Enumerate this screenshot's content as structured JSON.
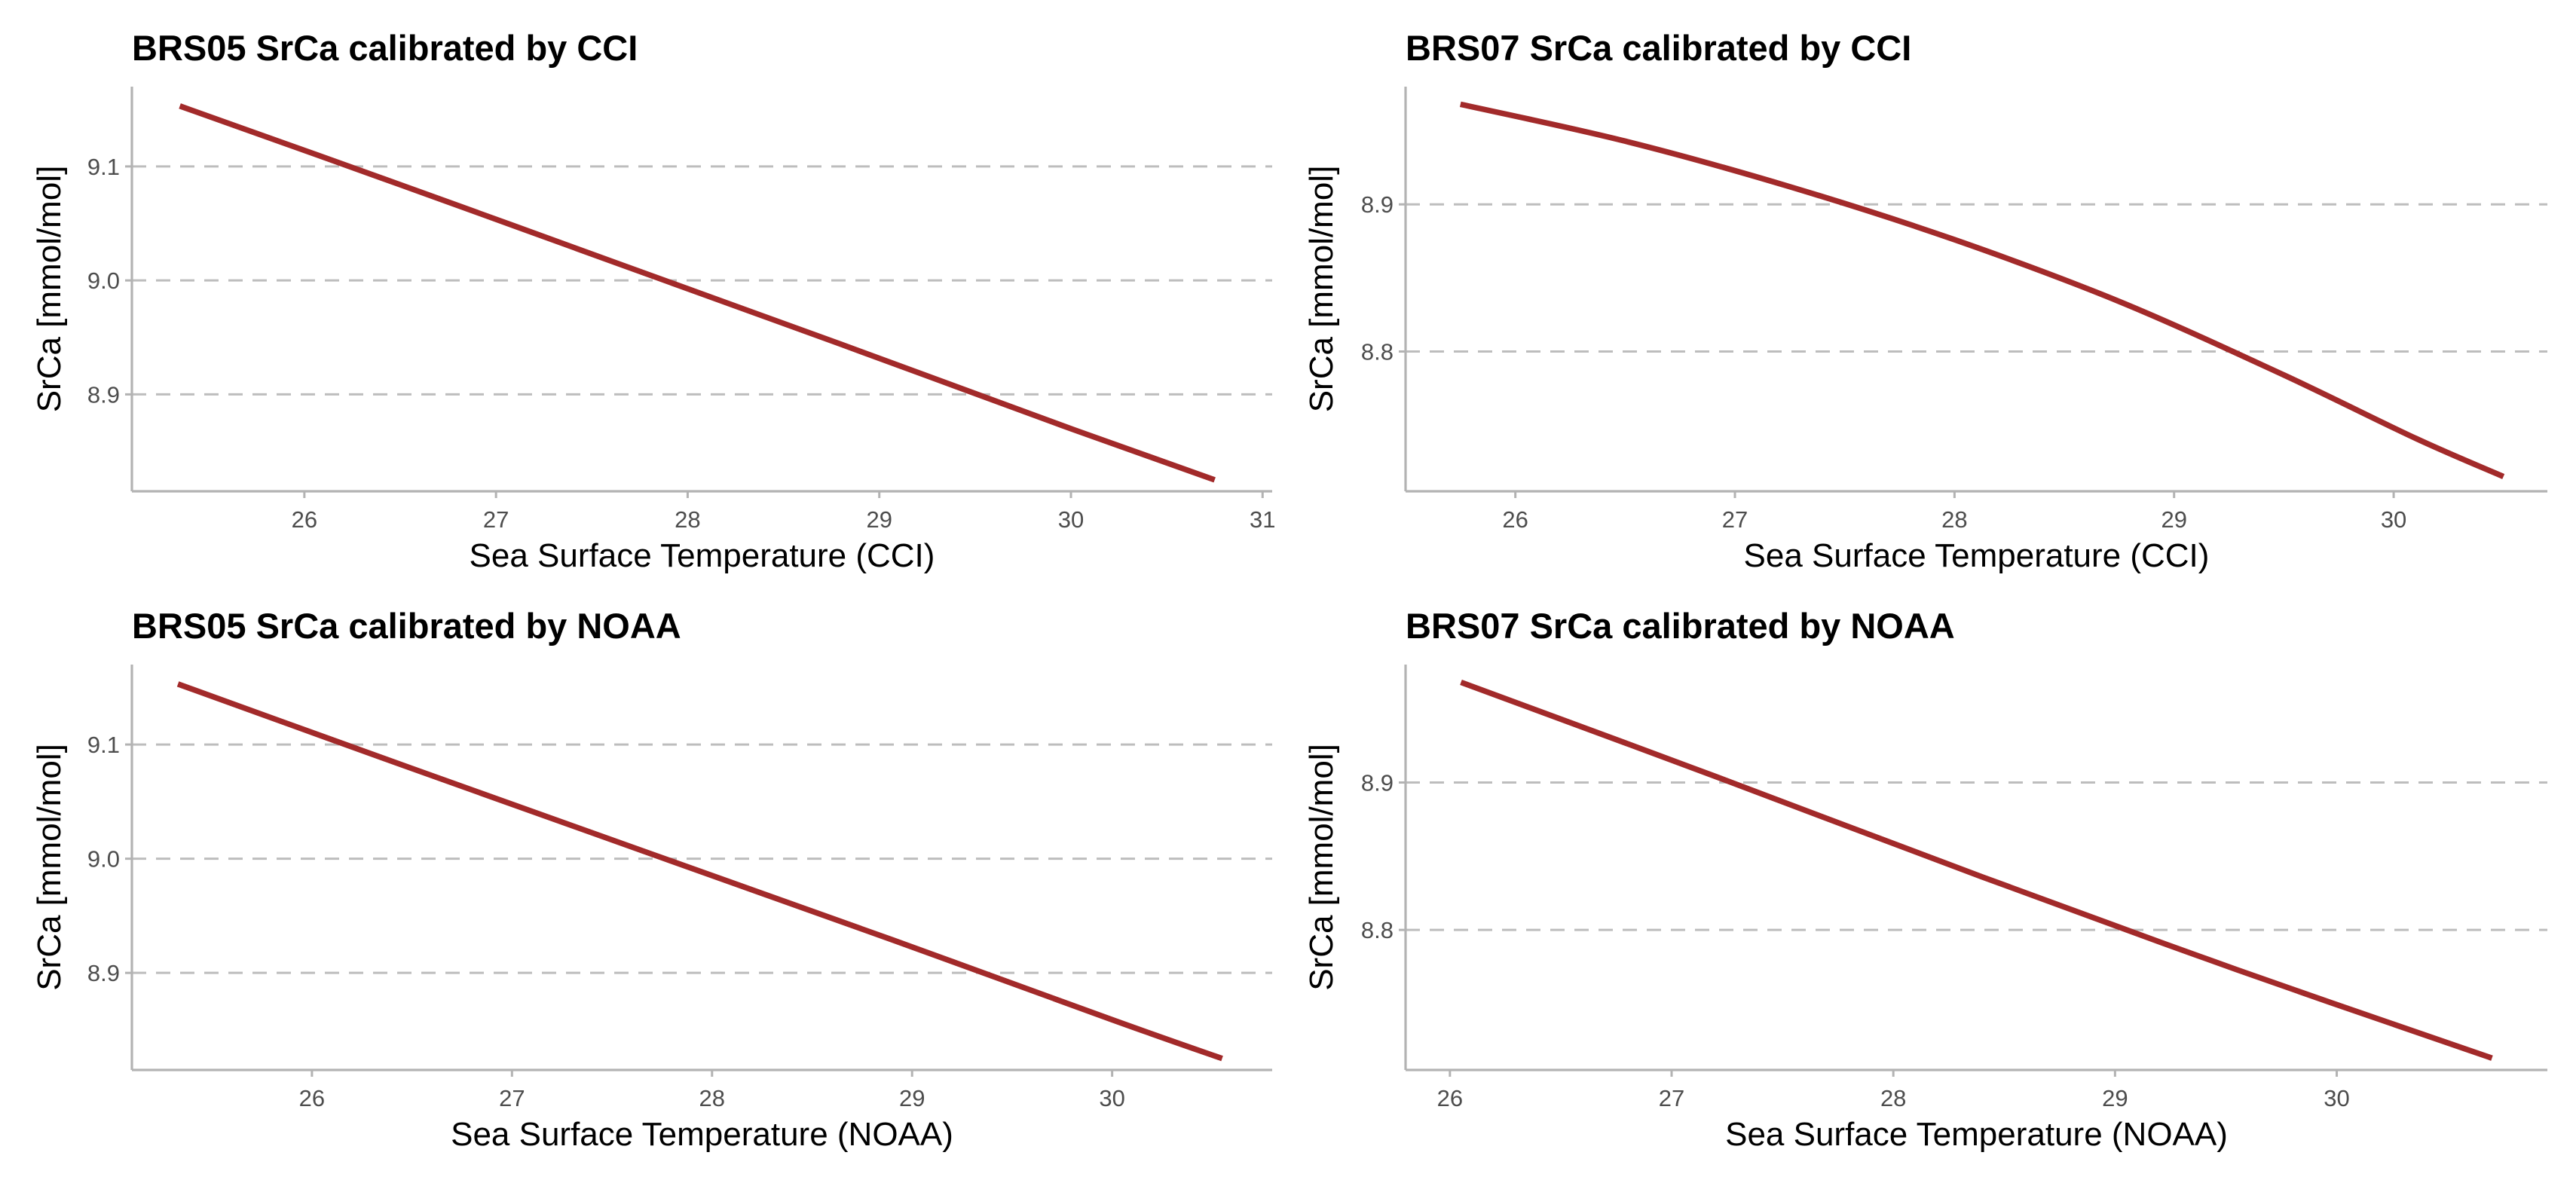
{
  "colors": {
    "line": "#a22a2a",
    "grid": "#bdbdbd",
    "axis": "#b3b3b3",
    "tick_label": "#4d4d4d"
  },
  "chart_data": [
    {
      "type": "line",
      "title": "BRS05 SrCa calibrated by CCI",
      "xlabel": "Sea Surface Temperature (CCI)",
      "ylabel": "SrCa [mmol/mol]",
      "xlim": [
        25.1,
        31.05
      ],
      "ylim": [
        8.815,
        9.17
      ],
      "xticks": [
        26,
        27,
        28,
        29,
        30,
        31
      ],
      "xtick_labels": [
        "26",
        "27",
        "28",
        "29",
        "30",
        "31"
      ],
      "yticks": [
        8.9,
        9.0,
        9.1
      ],
      "ytick_labels": [
        "8.9",
        "9.0",
        "9.1"
      ],
      "grid": "horizontal dashed",
      "series": [
        {
          "x": [
            25.35,
            26.5,
            27.65,
            28.8,
            29.95,
            30.75
          ],
          "y": [
            9.153,
            9.084,
            9.014,
            8.944,
            8.873,
            8.825
          ]
        }
      ]
    },
    {
      "type": "line",
      "title": "BRS07 SrCa calibrated by CCI",
      "xlabel": "Sea Surface Temperature (CCI)",
      "ylabel": "SrCa [mmol/mol]",
      "xlim": [
        25.5,
        30.7
      ],
      "ylim": [
        8.705,
        8.98
      ],
      "xticks": [
        26,
        27,
        28,
        29,
        30
      ],
      "xtick_labels": [
        "26",
        "27",
        "28",
        "29",
        "30"
      ],
      "yticks": [
        8.8,
        8.9
      ],
      "ytick_labels": [
        "8.8",
        "8.9"
      ],
      "grid": "horizontal dashed",
      "series": [
        {
          "x": [
            25.75,
            26.5,
            27.25,
            28.0,
            28.75,
            29.5,
            30.1,
            30.5
          ],
          "y": [
            8.968,
            8.943,
            8.912,
            8.876,
            8.834,
            8.784,
            8.741,
            8.715
          ]
        }
      ]
    },
    {
      "type": "line",
      "title": "BRS05 SrCa calibrated by NOAA",
      "xlabel": "Sea Surface Temperature (NOAA)",
      "ylabel": "SrCa [mmol/mol]",
      "xlim": [
        25.1,
        30.8
      ],
      "ylim": [
        8.815,
        9.17
      ],
      "xticks": [
        26,
        27,
        28,
        29,
        30
      ],
      "xtick_labels": [
        "26",
        "27",
        "28",
        "29",
        "30"
      ],
      "yticks": [
        8.9,
        9.0,
        9.1
      ],
      "ytick_labels": [
        "8.9",
        "9.0",
        "9.1"
      ],
      "grid": "horizontal dashed",
      "series": [
        {
          "x": [
            25.33,
            26.5,
            27.7,
            28.9,
            30.0,
            30.55
          ],
          "y": [
            9.153,
            9.079,
            9.004,
            8.929,
            8.859,
            8.825
          ]
        }
      ]
    },
    {
      "type": "line",
      "title": "BRS07 SrCa calibrated by NOAA",
      "xlabel": "Sea Surface Temperature (NOAA)",
      "ylabel": "SrCa [mmol/mol]",
      "xlim": [
        25.8,
        30.95
      ],
      "ylim": [
        8.705,
        8.98
      ],
      "xticks": [
        26,
        27,
        28,
        29,
        30
      ],
      "xtick_labels": [
        "26",
        "27",
        "28",
        "29",
        "30"
      ],
      "yticks": [
        8.8,
        8.9
      ],
      "ytick_labels": [
        "8.8",
        "8.9"
      ],
      "grid": "horizontal dashed",
      "series": [
        {
          "x": [
            26.05,
            27.2,
            28.4,
            29.55,
            30.7
          ],
          "y": [
            8.968,
            8.904,
            8.836,
            8.773,
            8.713
          ]
        }
      ]
    }
  ]
}
